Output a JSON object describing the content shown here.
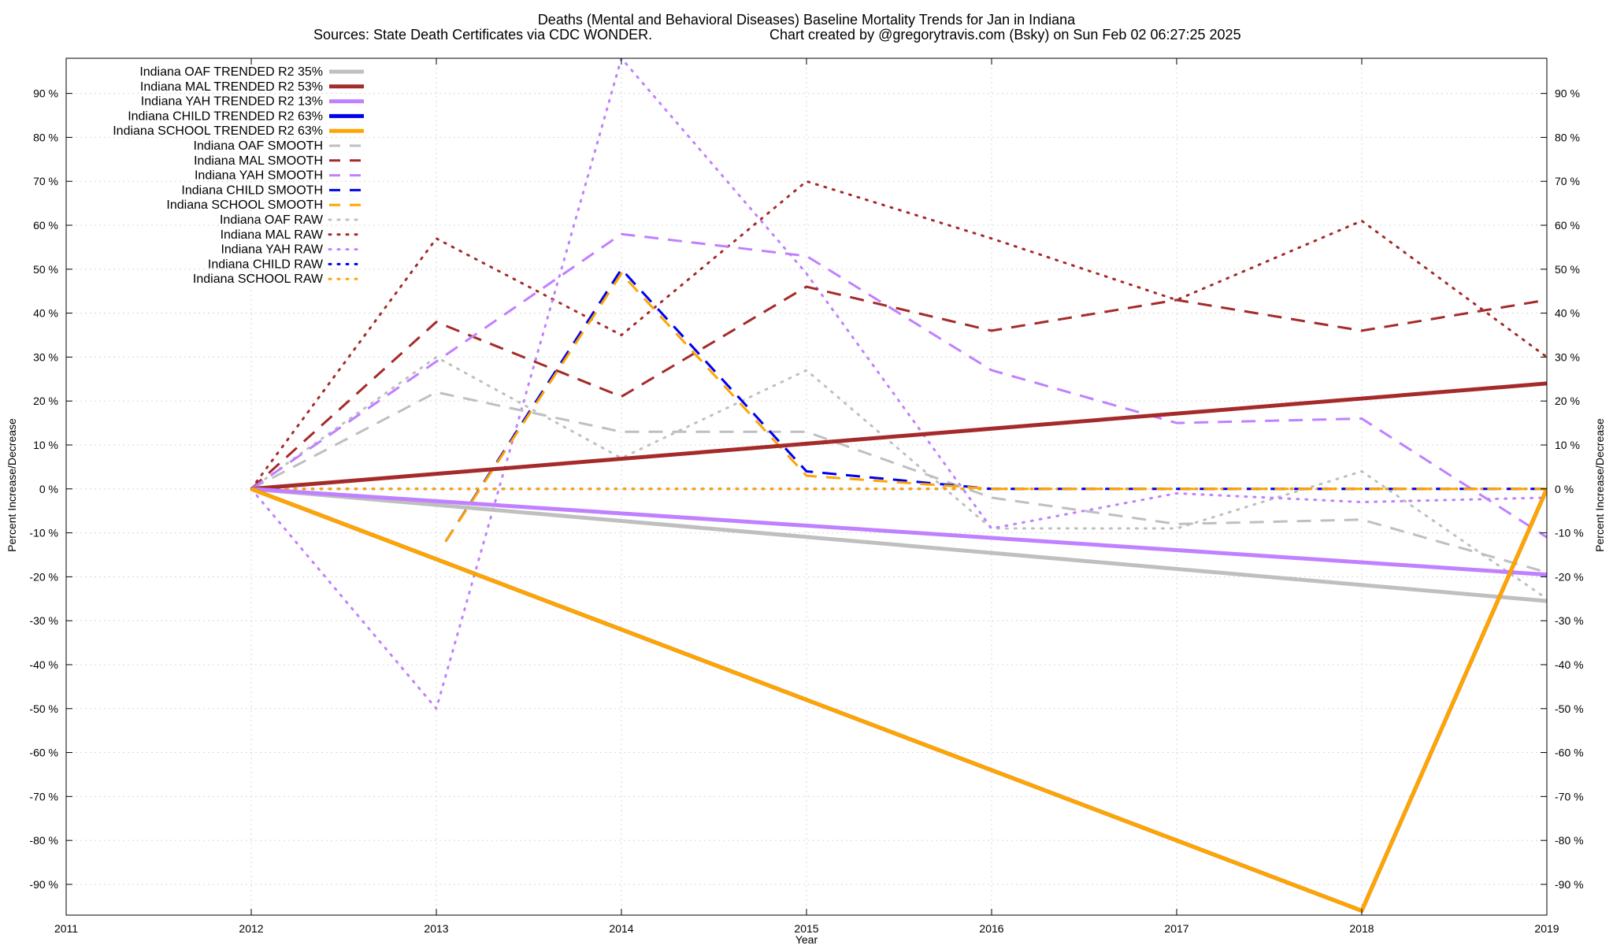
{
  "chart_data": {
    "type": "line",
    "title": "Deaths (Mental and Behavioral Diseases)  Baseline Mortality Trends for Jan in Indiana",
    "subtitle_left": "Sources: State Death Certificates via CDC WONDER.",
    "subtitle_right": "Chart created by @gregorytravis.com (Bsky) on Sun Feb 02 06:27:25 2025",
    "xlabel": "Year",
    "ylabel": "Percent Increase/Decrease",
    "ylabel_right": "Percent Increase/Decrease",
    "xlim": [
      2011,
      2019
    ],
    "ylim": [
      -97,
      98
    ],
    "x_ticks": [
      2011,
      2012,
      2013,
      2014,
      2015,
      2016,
      2017,
      2018,
      2019
    ],
    "x_tick_labels": [
      "2011",
      "2012",
      "2013",
      "2014",
      "2015",
      "2016",
      "2017",
      "2018",
      "2019"
    ],
    "y_ticks": [
      90,
      80,
      70,
      60,
      50,
      40,
      30,
      20,
      10,
      0,
      -10,
      -20,
      -30,
      -40,
      -50,
      -60,
      -70,
      -80,
      -90
    ],
    "y_tick_labels": [
      "90 %",
      "80 %",
      "70 %",
      "60 %",
      "50 %",
      "40 %",
      "30 %",
      "20 %",
      "10 %",
      "0 %",
      "-10 %",
      "-20 %",
      "-30 %",
      "-40 %",
      "-50 %",
      "-60 %",
      "-70 %",
      "-80 %",
      "-90 %"
    ],
    "grid": true,
    "legend_position": "top-left",
    "series": [
      {
        "name": "Indiana OAF TRENDED R2  35%",
        "color": "#bfbfbf",
        "style": "solid",
        "x": [
          2012,
          2019
        ],
        "y": [
          0,
          -25.5
        ]
      },
      {
        "name": "Indiana MAL TRENDED R2  53%",
        "color": "#a52a2a",
        "style": "solid",
        "x": [
          2012,
          2019
        ],
        "y": [
          0,
          24
        ]
      },
      {
        "name": "Indiana YAH TRENDED R2  13%",
        "color": "#c080ff",
        "style": "solid",
        "x": [
          2012,
          2019
        ],
        "y": [
          0,
          -19.5
        ]
      },
      {
        "name": "Indiana CHILD TRENDED R2  63%",
        "color": "#0000ee",
        "style": "solid",
        "x": [
          2012,
          2018,
          2019
        ],
        "y": [
          0,
          -96,
          0
        ]
      },
      {
        "name": "Indiana SCHOOL TRENDED R2  63%",
        "color": "#ffa500",
        "style": "solid",
        "x": [
          2012,
          2018,
          2019
        ],
        "y": [
          0,
          -96,
          0
        ]
      },
      {
        "name": "Indiana OAF SMOOTH",
        "color": "#bfbfbf",
        "style": "dashed",
        "x": [
          2012,
          2013,
          2014,
          2015,
          2016,
          2017,
          2018,
          2019
        ],
        "y": [
          0,
          22,
          13,
          13,
          -2,
          -8,
          -7,
          -19
        ]
      },
      {
        "name": "Indiana MAL SMOOTH",
        "color": "#a52a2a",
        "style": "dashed",
        "x": [
          2012,
          2013,
          2014,
          2015,
          2016,
          2017,
          2018,
          2019
        ],
        "y": [
          0,
          38,
          21,
          46,
          36,
          43,
          36,
          43
        ]
      },
      {
        "name": "Indiana YAH SMOOTH",
        "color": "#c080ff",
        "style": "dashed",
        "x": [
          2012,
          2013,
          2014,
          2015,
          2016,
          2017,
          2018,
          2019
        ],
        "y": [
          0,
          29,
          58,
          53,
          27,
          15,
          16,
          -11
        ]
      },
      {
        "name": "Indiana CHILD SMOOTH",
        "color": "#0000ee",
        "style": "dashed",
        "x": [
          2013.05,
          2014,
          2015,
          2016,
          2017,
          2018,
          2019
        ],
        "y": [
          -12,
          50,
          4,
          0,
          0,
          0,
          0
        ]
      },
      {
        "name": "Indiana SCHOOL SMOOTH",
        "color": "#ffa500",
        "style": "dashed",
        "x": [
          2013.05,
          2014,
          2015,
          2016,
          2017,
          2018,
          2019
        ],
        "y": [
          -12,
          49,
          3,
          0,
          0,
          0,
          0
        ]
      },
      {
        "name": "Indiana OAF RAW",
        "color": "#bfbfbf",
        "style": "dotted",
        "x": [
          2012,
          2013,
          2014,
          2015,
          2016,
          2017,
          2018,
          2019
        ],
        "y": [
          0,
          30,
          7,
          27,
          -9,
          -9,
          4,
          -25
        ]
      },
      {
        "name": "Indiana MAL RAW",
        "color": "#a52a2a",
        "style": "dotted",
        "x": [
          2012,
          2013,
          2014,
          2015,
          2016,
          2017,
          2018,
          2019
        ],
        "y": [
          0,
          57,
          35,
          70,
          57,
          43,
          61,
          30
        ]
      },
      {
        "name": "Indiana YAH RAW",
        "color": "#c080ff",
        "style": "dotted",
        "x": [
          2012,
          2013,
          2014,
          2015,
          2016,
          2017,
          2018,
          2019
        ],
        "y": [
          0,
          -50,
          98,
          49,
          -9,
          -1,
          -3,
          -2
        ]
      },
      {
        "name": "Indiana CHILD RAW",
        "color": "#0000ee",
        "style": "dotted",
        "x": [
          2012,
          2013,
          2014,
          2015,
          2016,
          2017,
          2018,
          2019
        ],
        "y": [
          0,
          0,
          0,
          0,
          0,
          0,
          0,
          0
        ]
      },
      {
        "name": "Indiana SCHOOL RAW",
        "color": "#ffa500",
        "style": "dotted",
        "x": [
          2012,
          2013,
          2014,
          2015,
          2016,
          2017,
          2018,
          2019
        ],
        "y": [
          0,
          0,
          0,
          0,
          0,
          0,
          0,
          0
        ]
      }
    ]
  }
}
